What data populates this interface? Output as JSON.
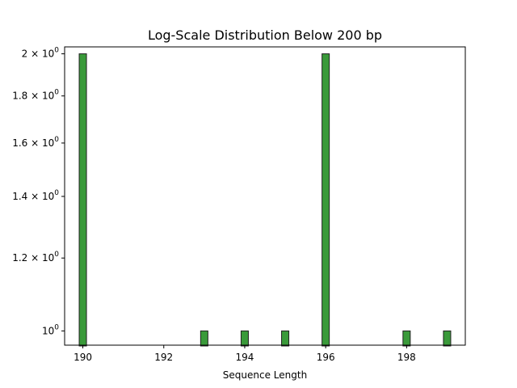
{
  "chart_data": {
    "type": "bar",
    "title": "Log-Scale Distribution Below 200 bp",
    "xlabel": "Sequence Length",
    "ylabel": "",
    "y_scale": "log",
    "xlim": [
      189.55,
      199.45
    ],
    "ylim": [
      0.965,
      2.035
    ],
    "x_ticks": [
      190,
      192,
      194,
      196,
      198
    ],
    "y_ticks": [
      {
        "value": 1.0,
        "label": "10⁰",
        "mantissa": "",
        "exp": "0"
      },
      {
        "value": 1.2,
        "label": "1.2 × 10⁰",
        "mantissa": "1.2",
        "exp": "0"
      },
      {
        "value": 1.4,
        "label": "1.4 × 10⁰",
        "mantissa": "1.4",
        "exp": "0"
      },
      {
        "value": 1.6,
        "label": "1.6 × 10⁰",
        "mantissa": "1.6",
        "exp": "0"
      },
      {
        "value": 1.8,
        "label": "1.8 × 10⁰",
        "mantissa": "1.8",
        "exp": "0"
      },
      {
        "value": 2.0,
        "label": "2 × 10⁰",
        "mantissa": "2",
        "exp": "0"
      }
    ],
    "bin_width": 0.18,
    "bars": [
      {
        "x": 190,
        "count": 2
      },
      {
        "x": 193,
        "count": 1
      },
      {
        "x": 194,
        "count": 1
      },
      {
        "x": 195,
        "count": 1
      },
      {
        "x": 196,
        "count": 2
      },
      {
        "x": 198,
        "count": 1
      },
      {
        "x": 199,
        "count": 1
      }
    ],
    "bar_color": "#3a9a3a",
    "bar_edge_color": "#222222",
    "grid": false
  }
}
